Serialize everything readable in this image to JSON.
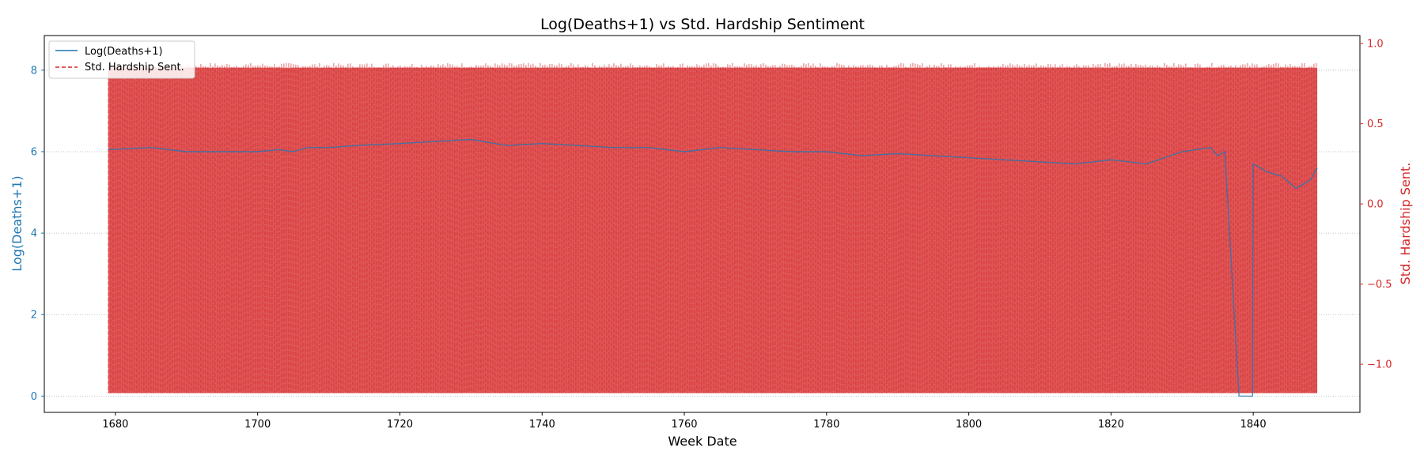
{
  "chart_data": {
    "type": "line",
    "title": "Log(Deaths+1) vs Std. Hardship Sentiment",
    "xlabel": "Week Date",
    "ylabel_left": "Log(Deaths+1)",
    "ylabel_right": "Std. Hardship Sent.",
    "xlim": [
      1670,
      1855
    ],
    "ylim_left": [
      -0.4,
      8.85
    ],
    "ylim_right": [
      -1.3,
      1.05
    ],
    "xticks": [
      1680,
      1700,
      1720,
      1740,
      1760,
      1780,
      1800,
      1820,
      1840
    ],
    "yticks_left": [
      0,
      2,
      4,
      6,
      8
    ],
    "yticks_right": [
      -1.0,
      -0.5,
      0.0,
      0.5,
      1.0
    ],
    "ytick_labels_right": [
      "−1.0",
      "−0.5",
      "0.0",
      "0.5",
      "1.0"
    ],
    "grid": "horizontal dotted",
    "legend": "upper-left",
    "colors": {
      "deaths": "#1f77b4",
      "hardship": "#d62728"
    },
    "series": [
      {
        "name": "Log(Deaths+1)",
        "axis": "left",
        "style": "solid",
        "x": [
          1679,
          1685,
          1690,
          1695,
          1700,
          1703,
          1705,
          1707,
          1710,
          1714,
          1720,
          1725,
          1730,
          1735,
          1740,
          1745,
          1750,
          1755,
          1760,
          1765,
          1770,
          1775,
          1780,
          1785,
          1790,
          1795,
          1800,
          1805,
          1810,
          1815,
          1820,
          1825,
          1830,
          1834,
          1835,
          1836,
          1838,
          1839.9,
          1840,
          1842,
          1844,
          1846,
          1848,
          1849
        ],
        "values": [
          6.05,
          6.1,
          6.0,
          6.0,
          6.0,
          6.05,
          6.0,
          6.1,
          6.1,
          6.15,
          6.2,
          6.25,
          6.3,
          6.15,
          6.2,
          6.15,
          6.1,
          6.1,
          6.0,
          6.1,
          6.05,
          6.0,
          6.0,
          5.9,
          5.95,
          5.9,
          5.85,
          5.8,
          5.75,
          5.7,
          5.8,
          5.7,
          6.0,
          6.1,
          5.9,
          6.0,
          0.0,
          0.0,
          5.7,
          5.5,
          5.4,
          5.1,
          5.3,
          5.6
        ]
      },
      {
        "name": "Std. Hardship Sent.",
        "axis": "right",
        "style": "dashed",
        "x_range": [
          1679,
          1849
        ],
        "upper_envelope": 0.85,
        "lower_envelope": -1.18
      }
    ]
  }
}
